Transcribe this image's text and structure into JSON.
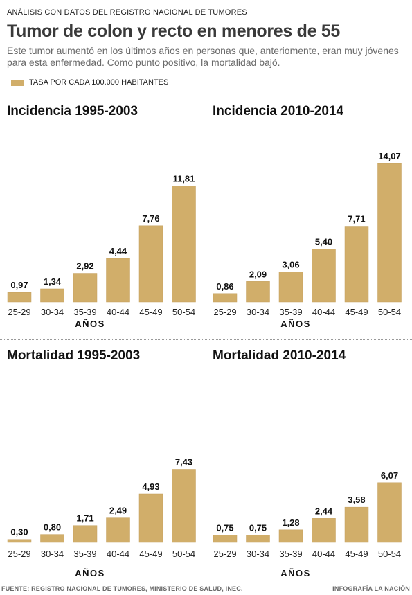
{
  "header": {
    "kicker": "ANÁLISIS CON DATOS DEL REGISTRO NACIONAL DE TUMORES",
    "title": "Tumor de colon y recto en menores de 55",
    "subtitle": "Este tumor aumentó en los últimos años en personas que, anteriomente, eran muy jóvenes para esta enfermedad. Como punto positivo, la mortalidad bajó."
  },
  "legend": {
    "label": "TASA POR CADA 100.000 HABITANTES",
    "color": "#d1ae6a"
  },
  "colors": {
    "bar": "#d1ae6a",
    "bar_stroke": "#c4a05e"
  },
  "chart_data": [
    {
      "type": "bar",
      "title": "Incidencia 1995-2003",
      "categories": [
        "25-29",
        "30-34",
        "35-39",
        "40-44",
        "45-49",
        "50-54"
      ],
      "values": [
        0.97,
        1.34,
        2.92,
        4.44,
        7.76,
        11.81
      ],
      "value_labels": [
        "0,97",
        "1,34",
        "2,92",
        "4,44",
        "7,76",
        "11,81"
      ],
      "xlabel": "AÑOS",
      "ylim": [
        0,
        14.07
      ]
    },
    {
      "type": "bar",
      "title": "Incidencia 2010-2014",
      "categories": [
        "25-29",
        "30-34",
        "35-39",
        "40-44",
        "45-49",
        "50-54"
      ],
      "values": [
        0.86,
        2.09,
        3.06,
        5.4,
        7.71,
        14.07
      ],
      "value_labels": [
        "0,86",
        "2,09",
        "3,06",
        "5,40",
        "7,71",
        "14,07"
      ],
      "xlabel": "AÑOS",
      "ylim": [
        0,
        14.07
      ]
    },
    {
      "type": "bar",
      "title": "Mortalidad 1995-2003",
      "categories": [
        "25-29",
        "30-34",
        "35-39",
        "40-44",
        "45-49",
        "50-54"
      ],
      "values": [
        0.3,
        0.8,
        1.71,
        2.49,
        4.93,
        7.43
      ],
      "value_labels": [
        "0,30",
        "0,80",
        "1,71",
        "2,49",
        "4,93",
        "7,43"
      ],
      "xlabel": "AÑOS",
      "ylim": [
        0,
        14.07
      ]
    },
    {
      "type": "bar",
      "title": "Mortalidad 2010-2014",
      "categories": [
        "25-29",
        "30-34",
        "35-39",
        "40-44",
        "45-49",
        "50-54"
      ],
      "values": [
        0.75,
        0.75,
        1.28,
        2.44,
        3.58,
        6.07
      ],
      "value_labels": [
        "0,75",
        "0,75",
        "1,28",
        "2,44",
        "3,58",
        "6,07"
      ],
      "xlabel": "AÑOS",
      "ylim": [
        0,
        14.07
      ]
    }
  ],
  "footer": {
    "source": "FUENTE: REGISTRO NACIONAL DE TUMORES, MINISTERIO DE SALUD, INEC.",
    "credit": "INFOGRAFÍA LA NACIÓN"
  }
}
